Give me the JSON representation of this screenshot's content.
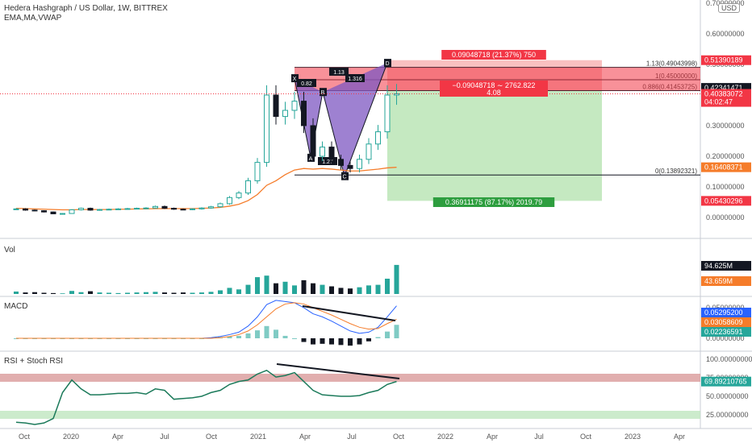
{
  "header": {
    "title": "Hedera Hashgraph / US Dollar, 1W, BITTREX",
    "indicators": "EMA,MA,VWAP",
    "currency": "USD"
  },
  "price_axis": {
    "ticks": [
      {
        "v": 0.7,
        "label": "0.70000000"
      },
      {
        "v": 0.6,
        "label": "0.60000000"
      },
      {
        "v": 0.5,
        "label": "0.50000000"
      },
      {
        "v": 0.4,
        "label": "0.40000000"
      },
      {
        "v": 0.3,
        "label": "0.30000000"
      },
      {
        "v": 0.2,
        "label": "0.20000000"
      },
      {
        "v": 0.1,
        "label": "0.10000000"
      },
      {
        "v": 0.0,
        "label": "0.00000000"
      }
    ],
    "badges": [
      {
        "v": 0.5139,
        "label": "0.51390189",
        "color": "#f23645"
      },
      {
        "v": 0.4234,
        "label": "0.42341471",
        "color": "#131722"
      },
      {
        "v": 0.4038,
        "label": "0.40383072",
        "color": "#f23645",
        "sub": "04:02:47"
      },
      {
        "v": 0.1641,
        "label": "0.16408371",
        "color": "#f57c2a"
      },
      {
        "v": 0.0543,
        "label": "0.05430296",
        "color": "#f23645"
      }
    ]
  },
  "time_axis": [
    "Oct",
    "2020",
    "Apr",
    "Jul",
    "Oct",
    "2021",
    "Apr",
    "Jul",
    "Oct",
    "2022",
    "Apr",
    "Jul",
    "Oct",
    "2023",
    "Apr"
  ],
  "fib_levels": [
    {
      "label": "1.13(0.49043998)",
      "v": 0.4904
    },
    {
      "label": "1(0.45000000)",
      "v": 0.45
    },
    {
      "label": "0.886(0.41453725)",
      "v": 0.4145
    },
    {
      "label": "0(0.13892321)",
      "v": 0.1389
    }
  ],
  "pattern": {
    "points": [
      {
        "label": "X",
        "v": 0.455
      },
      {
        "label": "A",
        "v": 0.195
      },
      {
        "label": "B",
        "v": 0.41
      },
      {
        "label": "C",
        "v": 0.135
      },
      {
        "label": "D",
        "v": 0.505
      }
    ],
    "ratios": [
      "0.82",
      "1.13",
      "1.316",
      "1.27"
    ]
  },
  "position": {
    "stop_label": "0.09048718 (21.37%) 750",
    "entry_label_1": "−0.09048718 ∼ 2762.822",
    "entry_label_2": "4.08",
    "target_label": "0.36911175 (87.17%) 2019.79",
    "entry": 0.4145,
    "stop": 0.5139,
    "target": 0.0543
  },
  "volume": {
    "title": "Vol",
    "badges": [
      {
        "label": "94.625M",
        "color": "#131722"
      },
      {
        "label": "43.659M",
        "color": "#f57c2a"
      }
    ]
  },
  "macd": {
    "title": "MACD",
    "ticks": [
      {
        "v": 0.05,
        "label": "0.05000000"
      },
      {
        "v": 0.0,
        "label": "0.00000000"
      }
    ],
    "badges": [
      {
        "v": 0.053,
        "label": "0.05295200",
        "color": "#2962ff"
      },
      {
        "v": 0.0306,
        "label": "0.03058609",
        "color": "#f57c2a"
      },
      {
        "v": 0.0224,
        "label": "0.02236591",
        "color": "#26a69a"
      }
    ]
  },
  "rsi": {
    "title": "RSI + Stoch RSI",
    "ticks": [
      {
        "v": 100,
        "label": "100.00000000"
      },
      {
        "v": 75,
        "label": "75.00000000"
      },
      {
        "v": 50,
        "label": "50.00000000"
      },
      {
        "v": 25,
        "label": "25.00000000"
      }
    ],
    "badges": [
      {
        "v": 69.892,
        "label": "69.89210765",
        "color": "#26a69a"
      }
    ]
  },
  "colors": {
    "bull": "#26a69a",
    "bear": "#131722",
    "ema": "#f57c2a",
    "macd_line": "#2962ff",
    "pattern_fill": "#7e57c2",
    "stop_fill": "#f6a5a5",
    "target_fill": "#b7e4b2",
    "rsi_band": "#d99a9a",
    "stoch_band": "#bfe6bf"
  },
  "chart_data": {
    "type": "line",
    "title": "Hedera Hashgraph / US Dollar, 1W, BITTREX",
    "x_range": [
      "2019-09",
      "2023-05"
    ],
    "ylim": [
      0,
      0.7
    ],
    "series": [
      {
        "name": "Hedera Hashgraph / US Dollar",
        "x": [
          "2019-09-23",
          "2019-10-14",
          "2019-11-04",
          "2019-11-25",
          "2019-12-16",
          "2020-01-06",
          "2020-01-27",
          "2020-02-17",
          "2020-03-09",
          "2020-03-30",
          "2020-04-20",
          "2020-05-11",
          "2020-06-01",
          "2020-06-22",
          "2020-07-13",
          "2020-08-03",
          "2020-08-24",
          "2020-09-14",
          "2020-10-05",
          "2020-10-26",
          "2020-11-16",
          "2020-12-07",
          "2020-12-28",
          "2021-01-11",
          "2021-01-25",
          "2021-02-08",
          "2021-02-22",
          "2021-03-08",
          "2021-03-22",
          "2021-04-05",
          "2021-04-19",
          "2021-05-03",
          "2021-05-17",
          "2021-05-31",
          "2021-06-14",
          "2021-06-28",
          "2021-07-12",
          "2021-07-26",
          "2021-08-09",
          "2021-08-23",
          "2021-09-06",
          "2021-09-13"
        ],
        "values": [
          0.028,
          0.024,
          0.022,
          0.018,
          0.012,
          0.013,
          0.025,
          0.03,
          0.024,
          0.026,
          0.027,
          0.028,
          0.029,
          0.03,
          0.031,
          0.036,
          0.03,
          0.027,
          0.026,
          0.028,
          0.031,
          0.035,
          0.045,
          0.065,
          0.08,
          0.12,
          0.18,
          0.4,
          0.33,
          0.35,
          0.38,
          0.3,
          0.2,
          0.23,
          0.19,
          0.17,
          0.16,
          0.19,
          0.24,
          0.28,
          0.4,
          0.404
        ]
      }
    ],
    "ema": {
      "name": "EMA",
      "values": [
        0.03,
        0.029,
        0.028,
        0.027,
        0.026,
        0.025,
        0.025,
        0.026,
        0.026,
        0.026,
        0.026,
        0.027,
        0.027,
        0.028,
        0.028,
        0.029,
        0.029,
        0.029,
        0.029,
        0.029,
        0.03,
        0.031,
        0.033,
        0.037,
        0.043,
        0.055,
        0.075,
        0.105,
        0.12,
        0.14,
        0.155,
        0.16,
        0.158,
        0.16,
        0.158,
        0.155,
        0.152,
        0.152,
        0.155,
        0.158,
        0.162,
        0.164
      ]
    },
    "volume": [
      8,
      5,
      6,
      4,
      3,
      2,
      10,
      6,
      9,
      5,
      4,
      3,
      4,
      5,
      6,
      7,
      5,
      4,
      5,
      4,
      5,
      7,
      12,
      20,
      15,
      30,
      55,
      60,
      35,
      40,
      28,
      45,
      35,
      30,
      25,
      20,
      18,
      22,
      28,
      30,
      50,
      95
    ],
    "macd": {
      "macd_line": [
        0,
        0,
        0,
        0,
        0,
        0,
        0,
        0,
        0,
        0,
        0,
        0,
        0,
        0,
        0,
        0,
        0,
        0,
        0,
        0,
        0,
        0.001,
        0.003,
        0.006,
        0.01,
        0.02,
        0.035,
        0.055,
        0.062,
        0.06,
        0.058,
        0.05,
        0.04,
        0.035,
        0.028,
        0.02,
        0.012,
        0.008,
        0.01,
        0.018,
        0.035,
        0.053
      ],
      "signal": [
        0,
        0,
        0,
        0,
        0,
        0,
        0,
        0,
        0,
        0,
        0,
        0,
        0,
        0,
        0,
        0,
        0,
        0,
        0,
        0,
        0,
        0,
        0.001,
        0.003,
        0.006,
        0.012,
        0.022,
        0.035,
        0.048,
        0.056,
        0.058,
        0.056,
        0.05,
        0.044,
        0.038,
        0.031,
        0.024,
        0.018,
        0.015,
        0.016,
        0.024,
        0.031
      ],
      "histogram": [
        0,
        0,
        0,
        0,
        0,
        0,
        0,
        0,
        0,
        0,
        0,
        0,
        0,
        0,
        0,
        0,
        0,
        0,
        0,
        0,
        0,
        0.001,
        0.002,
        0.003,
        0.004,
        0.008,
        0.013,
        0.02,
        0.014,
        0.004,
        0,
        -0.006,
        -0.01,
        -0.009,
        -0.01,
        -0.011,
        -0.012,
        -0.01,
        -0.005,
        0.002,
        0.011,
        0.022
      ]
    },
    "rsi": [
      15,
      14,
      12,
      14,
      20,
      55,
      72,
      60,
      52,
      52,
      53,
      54,
      54,
      55,
      53,
      60,
      58,
      46,
      47,
      48,
      50,
      55,
      58,
      66,
      70,
      72,
      80,
      85,
      76,
      78,
      82,
      70,
      58,
      52,
      51,
      50,
      50,
      51,
      55,
      58,
      66,
      70
    ]
  }
}
